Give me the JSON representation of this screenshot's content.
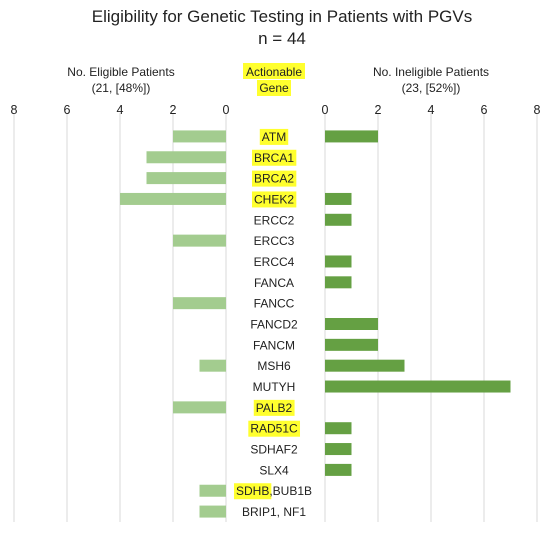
{
  "chart_data": {
    "type": "bar",
    "title": "Eligibility for Genetic Testing in Patients with PGVs",
    "subtitle": "n = 44",
    "left_panel": {
      "label_line1": "No. Eligible Patients",
      "label_line2": "(21, [48%])",
      "ticks": [
        "8",
        "6",
        "4",
        "2",
        "0"
      ],
      "xlim": [
        0,
        8
      ],
      "color": "#a3cc8f"
    },
    "right_panel": {
      "label_line1": "No. Ineligible Patients",
      "label_line2": "(23, [52%])",
      "ticks": [
        "0",
        "2",
        "4",
        "6",
        "8"
      ],
      "xlim": [
        0,
        8
      ],
      "color": "#65a043"
    },
    "center_label_line1": "Actionable",
    "center_label_line2": "Gene",
    "highlight_color": "#ffff2e",
    "grid": true,
    "categories": [
      {
        "parts": [
          {
            "text": "ATM",
            "highlight": true
          }
        ]
      },
      {
        "parts": [
          {
            "text": "BRCA1",
            "highlight": true
          }
        ]
      },
      {
        "parts": [
          {
            "text": "BRCA2",
            "highlight": true
          }
        ]
      },
      {
        "parts": [
          {
            "text": "CHEK2",
            "highlight": true
          }
        ]
      },
      {
        "parts": [
          {
            "text": "ERCC2",
            "highlight": false
          }
        ]
      },
      {
        "parts": [
          {
            "text": "ERCC3",
            "highlight": false
          }
        ]
      },
      {
        "parts": [
          {
            "text": "ERCC4",
            "highlight": false
          }
        ]
      },
      {
        "parts": [
          {
            "text": "FANCA",
            "highlight": false
          }
        ]
      },
      {
        "parts": [
          {
            "text": "FANCC",
            "highlight": false
          }
        ]
      },
      {
        "parts": [
          {
            "text": "FANCD2",
            "highlight": false
          }
        ]
      },
      {
        "parts": [
          {
            "text": "FANCM",
            "highlight": false
          }
        ]
      },
      {
        "parts": [
          {
            "text": "MSH6",
            "highlight": false
          }
        ]
      },
      {
        "parts": [
          {
            "text": "MUTYH",
            "highlight": false
          }
        ]
      },
      {
        "parts": [
          {
            "text": "PALB2",
            "highlight": true
          }
        ]
      },
      {
        "parts": [
          {
            "text": "RAD51C",
            "highlight": true
          }
        ]
      },
      {
        "parts": [
          {
            "text": "SDHAF2",
            "highlight": false
          }
        ]
      },
      {
        "parts": [
          {
            "text": "SLX4",
            "highlight": false
          }
        ]
      },
      {
        "parts": [
          {
            "text": "SDHB",
            "highlight": true
          },
          {
            "text": ",BUB1B",
            "highlight": false
          }
        ]
      },
      {
        "parts": [
          {
            "text": "BRIP1, NF1",
            "highlight": false
          }
        ]
      }
    ],
    "eligible": [
      2,
      3,
      3,
      4,
      0,
      2,
      0,
      0,
      2,
      0,
      0,
      1,
      0,
      2,
      0,
      0,
      0,
      1,
      1
    ],
    "ineligible": [
      2,
      0,
      0,
      1,
      1,
      0,
      1,
      1,
      0,
      2,
      2,
      3,
      7,
      0,
      1,
      1,
      1,
      0,
      0
    ]
  }
}
